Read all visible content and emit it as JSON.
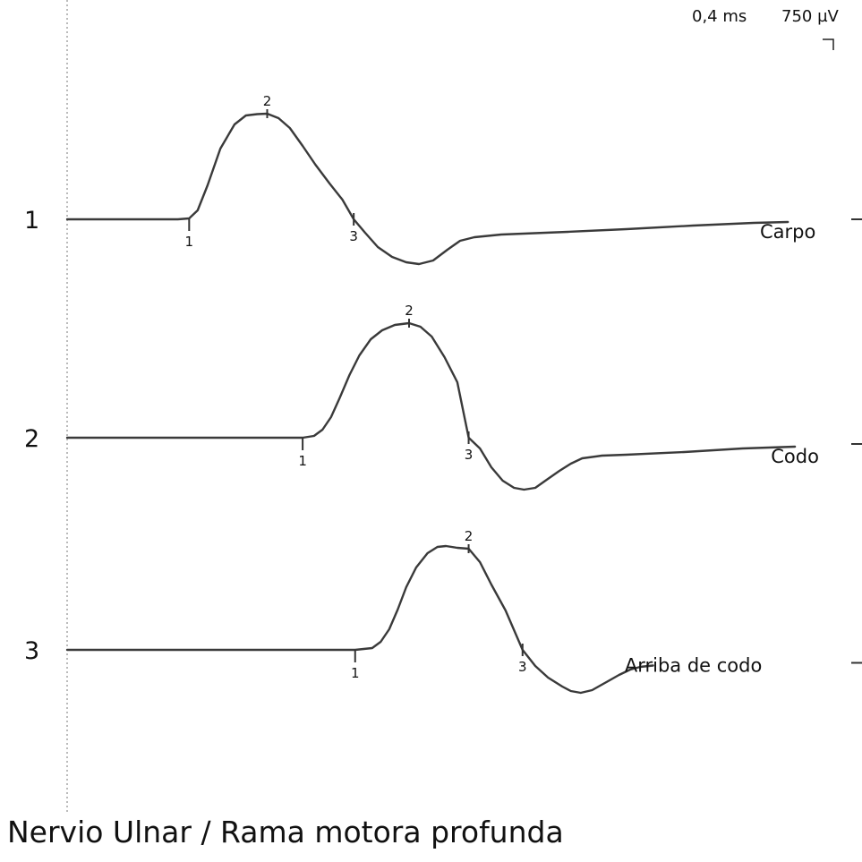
{
  "title": "Nervio Ulnar / Rama motora profunda",
  "scale": {
    "time_label": "0,4 ms",
    "amplitude_label": "750 µV"
  },
  "chart_data": {
    "type": "line",
    "title": "Nervio Ulnar / Rama motora profunda",
    "time_per_division_ms": 0.4,
    "amplitude_per_division_uV": 750,
    "x_unit": "ms",
    "y_unit": "µV",
    "series": [
      {
        "row_label": "1",
        "name": "Carpo",
        "markers": [
          {
            "label": "1",
            "t_ms": 0.86
          },
          {
            "label": "2",
            "t_ms": 1.41
          },
          {
            "label": "3",
            "t_ms": 2.02
          }
        ],
        "points": [
          [
            0.0,
            0
          ],
          [
            0.78,
            0
          ],
          [
            0.86,
            10
          ],
          [
            0.92,
            100
          ],
          [
            0.99,
            380
          ],
          [
            1.08,
            790
          ],
          [
            1.18,
            1060
          ],
          [
            1.26,
            1160
          ],
          [
            1.34,
            1175
          ],
          [
            1.41,
            1180
          ],
          [
            1.49,
            1130
          ],
          [
            1.57,
            1020
          ],
          [
            1.66,
            820
          ],
          [
            1.75,
            610
          ],
          [
            1.85,
            400
          ],
          [
            1.94,
            220
          ],
          [
            2.02,
            0
          ],
          [
            2.1,
            -150
          ],
          [
            2.19,
            -310
          ],
          [
            2.29,
            -420
          ],
          [
            2.39,
            -480
          ],
          [
            2.48,
            -500
          ],
          [
            2.58,
            -460
          ],
          [
            2.68,
            -340
          ],
          [
            2.77,
            -240
          ],
          [
            2.87,
            -200
          ],
          [
            3.06,
            -170
          ],
          [
            3.53,
            -140
          ],
          [
            3.94,
            -110
          ],
          [
            4.41,
            -70
          ],
          [
            4.84,
            -40
          ],
          [
            5.08,
            -30
          ]
        ]
      },
      {
        "row_label": "2",
        "name": "Codo",
        "markers": [
          {
            "label": "1",
            "t_ms": 1.66
          },
          {
            "label": "2",
            "t_ms": 2.41
          },
          {
            "label": "3",
            "t_ms": 2.83
          }
        ],
        "points": [
          [
            0.0,
            0
          ],
          [
            1.66,
            0
          ],
          [
            1.74,
            20
          ],
          [
            1.8,
            90
          ],
          [
            1.86,
            230
          ],
          [
            1.92,
            440
          ],
          [
            1.99,
            700
          ],
          [
            2.06,
            920
          ],
          [
            2.14,
            1100
          ],
          [
            2.22,
            1200
          ],
          [
            2.31,
            1260
          ],
          [
            2.41,
            1280
          ],
          [
            2.49,
            1240
          ],
          [
            2.57,
            1130
          ],
          [
            2.66,
            900
          ],
          [
            2.75,
            620
          ],
          [
            2.83,
            0
          ],
          [
            2.91,
            -120
          ],
          [
            2.99,
            -330
          ],
          [
            3.07,
            -480
          ],
          [
            3.15,
            -560
          ],
          [
            3.22,
            -580
          ],
          [
            3.3,
            -560
          ],
          [
            3.38,
            -470
          ],
          [
            3.47,
            -370
          ],
          [
            3.55,
            -290
          ],
          [
            3.63,
            -230
          ],
          [
            3.77,
            -200
          ],
          [
            3.94,
            -190
          ],
          [
            4.35,
            -160
          ],
          [
            4.76,
            -120
          ],
          [
            5.13,
            -100
          ]
        ]
      },
      {
        "row_label": "3",
        "name": "Arriba de codo",
        "markers": [
          {
            "label": "1",
            "t_ms": 2.03
          },
          {
            "label": "2",
            "t_ms": 2.83
          },
          {
            "label": "3",
            "t_ms": 3.21
          }
        ],
        "points": [
          [
            0.0,
            0
          ],
          [
            2.03,
            0
          ],
          [
            2.15,
            20
          ],
          [
            2.21,
            90
          ],
          [
            2.27,
            230
          ],
          [
            2.33,
            450
          ],
          [
            2.39,
            700
          ],
          [
            2.46,
            920
          ],
          [
            2.54,
            1080
          ],
          [
            2.61,
            1150
          ],
          [
            2.67,
            1160
          ],
          [
            2.75,
            1140
          ],
          [
            2.83,
            1130
          ],
          [
            2.91,
            980
          ],
          [
            2.99,
            730
          ],
          [
            3.09,
            440
          ],
          [
            3.21,
            0
          ],
          [
            3.3,
            -180
          ],
          [
            3.39,
            -310
          ],
          [
            3.49,
            -410
          ],
          [
            3.55,
            -460
          ],
          [
            3.62,
            -480
          ],
          [
            3.7,
            -450
          ],
          [
            3.79,
            -370
          ],
          [
            3.89,
            -280
          ],
          [
            3.97,
            -220
          ],
          [
            4.04,
            -190
          ],
          [
            4.13,
            -175
          ]
        ]
      }
    ]
  }
}
